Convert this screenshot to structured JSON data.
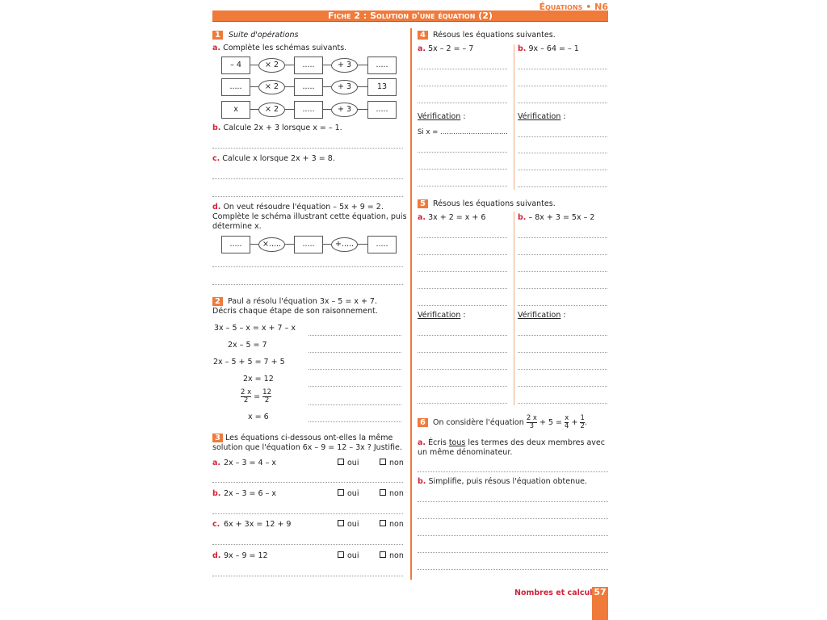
{
  "header": {
    "chapter": "Équations • N6",
    "title": "Fiche 2 : Solution d'une équation (2)"
  },
  "ex1": {
    "num": "1",
    "title": "Suite d'opérations",
    "a_label": "a.",
    "a_text": "Complète les schémas suivants.",
    "schemas": [
      [
        "– 4",
        "× 2",
        ".....",
        "+ 3",
        "....."
      ],
      [
        ".....",
        "× 2",
        ".....",
        "+ 3",
        "13"
      ],
      [
        "x",
        "× 2",
        ".....",
        "+ 3",
        "....."
      ]
    ],
    "b_label": "b.",
    "b_text": "Calcule 2x + 3 lorsque x = – 1.",
    "c_label": "c.",
    "c_text": "Calcule x lorsque 2x + 3 = 8.",
    "d_label": "d.",
    "d_text1": "On veut résoudre l'équation – 5x + 9 = 2.",
    "d_text2": "Complète le schéma illustrant cette équation, puis",
    "d_text3": "détermine x.",
    "schema_d": [
      ".....",
      "×.....",
      ".....",
      "+.....",
      "....."
    ]
  },
  "ex2": {
    "num": "2",
    "text1": "Paul a résolu l'équation 3x – 5 = x + 7.",
    "text2": "Décris chaque étape de son raisonnement.",
    "steps": [
      "3x – 5 – x = x + 7 – x",
      "2x – 5 = 7",
      "2x – 5 + 5 = 7 + 5",
      "2x = 12",
      "",
      "x = 6"
    ],
    "frac_step": {
      "n1": "2 x",
      "d1": "2",
      "eq": "=",
      "n2": "12",
      "d2": "2"
    }
  },
  "ex3": {
    "num": "3",
    "text1": "Les équations ci-dessous ont-elles la même",
    "text2": "solution que l'équation 6x – 9 = 12 – 3x ? Justifie.",
    "oui": "oui",
    "non": "non",
    "items": [
      {
        "label": "a.",
        "eq": "2x – 3 = 4 – x"
      },
      {
        "label": "b.",
        "eq": "2x – 3 = 6 – x"
      },
      {
        "label": "c.",
        "eq": "6x + 3x = 12 + 9"
      },
      {
        "label": "d.",
        "eq": "9x – 9 = 12"
      }
    ]
  },
  "ex4": {
    "num": "4",
    "text": "Résous les équations suivantes.",
    "a_label": "a.",
    "a_eq": "5x – 2 = – 7",
    "b_label": "b.",
    "b_eq": "9x – 64 = – 1",
    "verif": "Vérification",
    "colon": " :",
    "si": "Si x = ..............................."
  },
  "ex5": {
    "num": "5",
    "text": "Résous les équations suivantes.",
    "a_label": "a.",
    "a_eq": "3x + 2 = x + 6",
    "b_label": "b.",
    "b_eq": "– 8x + 3 = 5x – 2",
    "verif": "Vérification",
    "colon": " :"
  },
  "ex6": {
    "num": "6",
    "text": "On considère l'équation",
    "f1n": "2 x",
    "f1d": "3",
    "mid": "+ 5 =",
    "f2n": "x",
    "f2d": "4",
    "plus": "+",
    "f3n": "1",
    "f3d": "2",
    "end": ".",
    "a_label": "a.",
    "a_text1": "Écris ",
    "a_under": "tous",
    "a_text2": " les termes des deux membres avec",
    "a_text3": "un même dénominateur.",
    "b_label": "b.",
    "b_text": "Simplifie, puis résous l'équation obtenue."
  },
  "footer": {
    "section": "Nombres et calculs",
    "page": "57"
  },
  "colors": {
    "accent": "#f07a3a",
    "label": "#d0243a"
  }
}
